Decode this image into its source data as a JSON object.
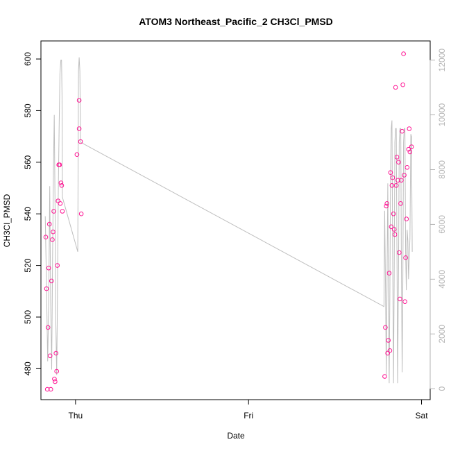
{
  "chart_data": {
    "type": "scatter",
    "title": "ATOM3 Northeast_Pacific_2 CH3Cl_PMSD",
    "xlabel": "Date",
    "ylabel": "CH3Cl_PMSD",
    "x_ticks": [
      {
        "label": "Thu",
        "value": 0
      },
      {
        "label": "Fri",
        "value": 1
      },
      {
        "label": "Sat",
        "value": 2
      }
    ],
    "xlim": [
      -0.2,
      2.05
    ],
    "ylim": [
      468,
      607
    ],
    "y_ticks": [
      480,
      500,
      520,
      540,
      560,
      580,
      600
    ],
    "y2lim": [
      -400,
      12700
    ],
    "y2_ticks": [
      0,
      2000,
      4000,
      6000,
      8000,
      10000,
      12000
    ],
    "colors": {
      "points": "#ff1493",
      "line": "#bebebe",
      "right_axis": "#b3b3b3"
    },
    "series": [
      {
        "type": "scatter",
        "axis": "left",
        "values": [
          {
            "x": -0.172,
            "y": 531
          },
          {
            "x": -0.168,
            "y": 511
          },
          {
            "x": -0.163,
            "y": 472
          },
          {
            "x": -0.159,
            "y": 496
          },
          {
            "x": -0.155,
            "y": 519
          },
          {
            "x": -0.151,
            "y": 536
          },
          {
            "x": -0.147,
            "y": 485
          },
          {
            "x": -0.143,
            "y": 472
          },
          {
            "x": -0.139,
            "y": 514
          },
          {
            "x": -0.134,
            "y": 530
          },
          {
            "x": -0.13,
            "y": 533
          },
          {
            "x": -0.126,
            "y": 541
          },
          {
            "x": -0.122,
            "y": 476
          },
          {
            "x": -0.118,
            "y": 475
          },
          {
            "x": -0.113,
            "y": 486
          },
          {
            "x": -0.109,
            "y": 479
          },
          {
            "x": -0.105,
            "y": 520
          },
          {
            "x": -0.101,
            "y": 545
          },
          {
            "x": -0.097,
            "y": 559
          },
          {
            "x": -0.092,
            "y": 559
          },
          {
            "x": -0.088,
            "y": 544
          },
          {
            "x": -0.084,
            "y": 552
          },
          {
            "x": -0.08,
            "y": 551
          },
          {
            "x": -0.076,
            "y": 541
          },
          {
            "x": 0.008,
            "y": 563
          },
          {
            "x": 0.021,
            "y": 573
          },
          {
            "x": 0.021,
            "y": 584
          },
          {
            "x": 0.029,
            "y": 568
          },
          {
            "x": 0.033,
            "y": 540
          },
          {
            "x": 1.787,
            "y": 477
          },
          {
            "x": 1.791,
            "y": 496
          },
          {
            "x": 1.796,
            "y": 543
          },
          {
            "x": 1.8,
            "y": 544
          },
          {
            "x": 1.804,
            "y": 486
          },
          {
            "x": 1.808,
            "y": 491
          },
          {
            "x": 1.813,
            "y": 517
          },
          {
            "x": 1.817,
            "y": 487
          },
          {
            "x": 1.821,
            "y": 556
          },
          {
            "x": 1.825,
            "y": 535
          },
          {
            "x": 1.829,
            "y": 551
          },
          {
            "x": 1.833,
            "y": 554
          },
          {
            "x": 1.838,
            "y": 540
          },
          {
            "x": 1.842,
            "y": 534
          },
          {
            "x": 1.846,
            "y": 532
          },
          {
            "x": 1.85,
            "y": 589
          },
          {
            "x": 1.854,
            "y": 551
          },
          {
            "x": 1.858,
            "y": 562
          },
          {
            "x": 1.863,
            "y": 553
          },
          {
            "x": 1.867,
            "y": 560
          },
          {
            "x": 1.871,
            "y": 525
          },
          {
            "x": 1.875,
            "y": 507
          },
          {
            "x": 1.879,
            "y": 544
          },
          {
            "x": 1.883,
            "y": 553
          },
          {
            "x": 1.888,
            "y": 572
          },
          {
            "x": 1.892,
            "y": 590
          },
          {
            "x": 1.896,
            "y": 602
          },
          {
            "x": 1.9,
            "y": 555
          },
          {
            "x": 1.904,
            "y": 506
          },
          {
            "x": 1.908,
            "y": 523
          },
          {
            "x": 1.913,
            "y": 538
          },
          {
            "x": 1.917,
            "y": 558
          },
          {
            "x": 1.925,
            "y": 565
          },
          {
            "x": 1.929,
            "y": 573
          },
          {
            "x": 1.933,
            "y": 564
          },
          {
            "x": 1.942,
            "y": 566
          }
        ]
      },
      {
        "type": "line",
        "axis": "right",
        "values": [
          {
            "x": -0.175,
            "y": 6300
          },
          {
            "x": -0.168,
            "y": 3800
          },
          {
            "x": -0.161,
            "y": 1000
          },
          {
            "x": -0.155,
            "y": 3000
          },
          {
            "x": -0.149,
            "y": 7400
          },
          {
            "x": -0.144,
            "y": 3200
          },
          {
            "x": -0.138,
            "y": 700
          },
          {
            "x": -0.133,
            "y": 4500
          },
          {
            "x": -0.128,
            "y": 8000
          },
          {
            "x": -0.123,
            "y": 10000
          },
          {
            "x": -0.118,
            "y": 6500
          },
          {
            "x": -0.114,
            "y": 2500
          },
          {
            "x": -0.109,
            "y": 500
          },
          {
            "x": -0.105,
            "y": 3000
          },
          {
            "x": -0.1,
            "y": 7000
          },
          {
            "x": -0.095,
            "y": 9500
          },
          {
            "x": -0.09,
            "y": 11500
          },
          {
            "x": -0.085,
            "y": 12000
          },
          {
            "x": -0.081,
            "y": 12000
          },
          {
            "x": -0.078,
            "y": 10700
          },
          {
            "x": -0.076,
            "y": 7000
          },
          {
            "x": 0.013,
            "y": 5000
          },
          {
            "x": 0.017,
            "y": 11600
          },
          {
            "x": 0.021,
            "y": 12100
          },
          {
            "x": 0.025,
            "y": 11600
          },
          {
            "x": 0.029,
            "y": 9000
          },
          {
            "x": 1.783,
            "y": 3000
          },
          {
            "x": 1.787,
            "y": 6500
          },
          {
            "x": 1.792,
            "y": 3500
          },
          {
            "x": 1.796,
            "y": 500
          },
          {
            "x": 1.8,
            "y": 3500
          },
          {
            "x": 1.805,
            "y": 7500
          },
          {
            "x": 1.809,
            "y": 3000
          },
          {
            "x": 1.813,
            "y": 200
          },
          {
            "x": 1.817,
            "y": 3500
          },
          {
            "x": 1.821,
            "y": 8000
          },
          {
            "x": 1.825,
            "y": 9500
          },
          {
            "x": 1.829,
            "y": 9800
          },
          {
            "x": 1.833,
            "y": 5000
          },
          {
            "x": 1.838,
            "y": 200
          },
          {
            "x": 1.842,
            "y": 4000
          },
          {
            "x": 1.846,
            "y": 9000
          },
          {
            "x": 1.85,
            "y": 9500
          },
          {
            "x": 1.854,
            "y": 9500
          },
          {
            "x": 1.858,
            "y": 5000
          },
          {
            "x": 1.862,
            "y": 200
          },
          {
            "x": 1.867,
            "y": 4500
          },
          {
            "x": 1.871,
            "y": 9000
          },
          {
            "x": 1.875,
            "y": 9500
          },
          {
            "x": 1.88,
            "y": 9500
          },
          {
            "x": 1.883,
            "y": 5000
          },
          {
            "x": 1.888,
            "y": 600
          },
          {
            "x": 1.892,
            "y": 4000
          },
          {
            "x": 1.896,
            "y": 9000
          },
          {
            "x": 1.9,
            "y": 9500
          },
          {
            "x": 1.904,
            "y": 9500
          },
          {
            "x": 1.908,
            "y": 5000
          },
          {
            "x": 1.912,
            "y": 3600
          },
          {
            "x": 1.917,
            "y": 5800
          },
          {
            "x": 1.921,
            "y": 5400
          },
          {
            "x": 1.925,
            "y": 4000
          },
          {
            "x": 1.933,
            "y": 5500
          },
          {
            "x": 1.938,
            "y": 9300
          },
          {
            "x": 1.942,
            "y": 9200
          },
          {
            "x": 1.946,
            "y": 5000
          }
        ]
      }
    ]
  }
}
